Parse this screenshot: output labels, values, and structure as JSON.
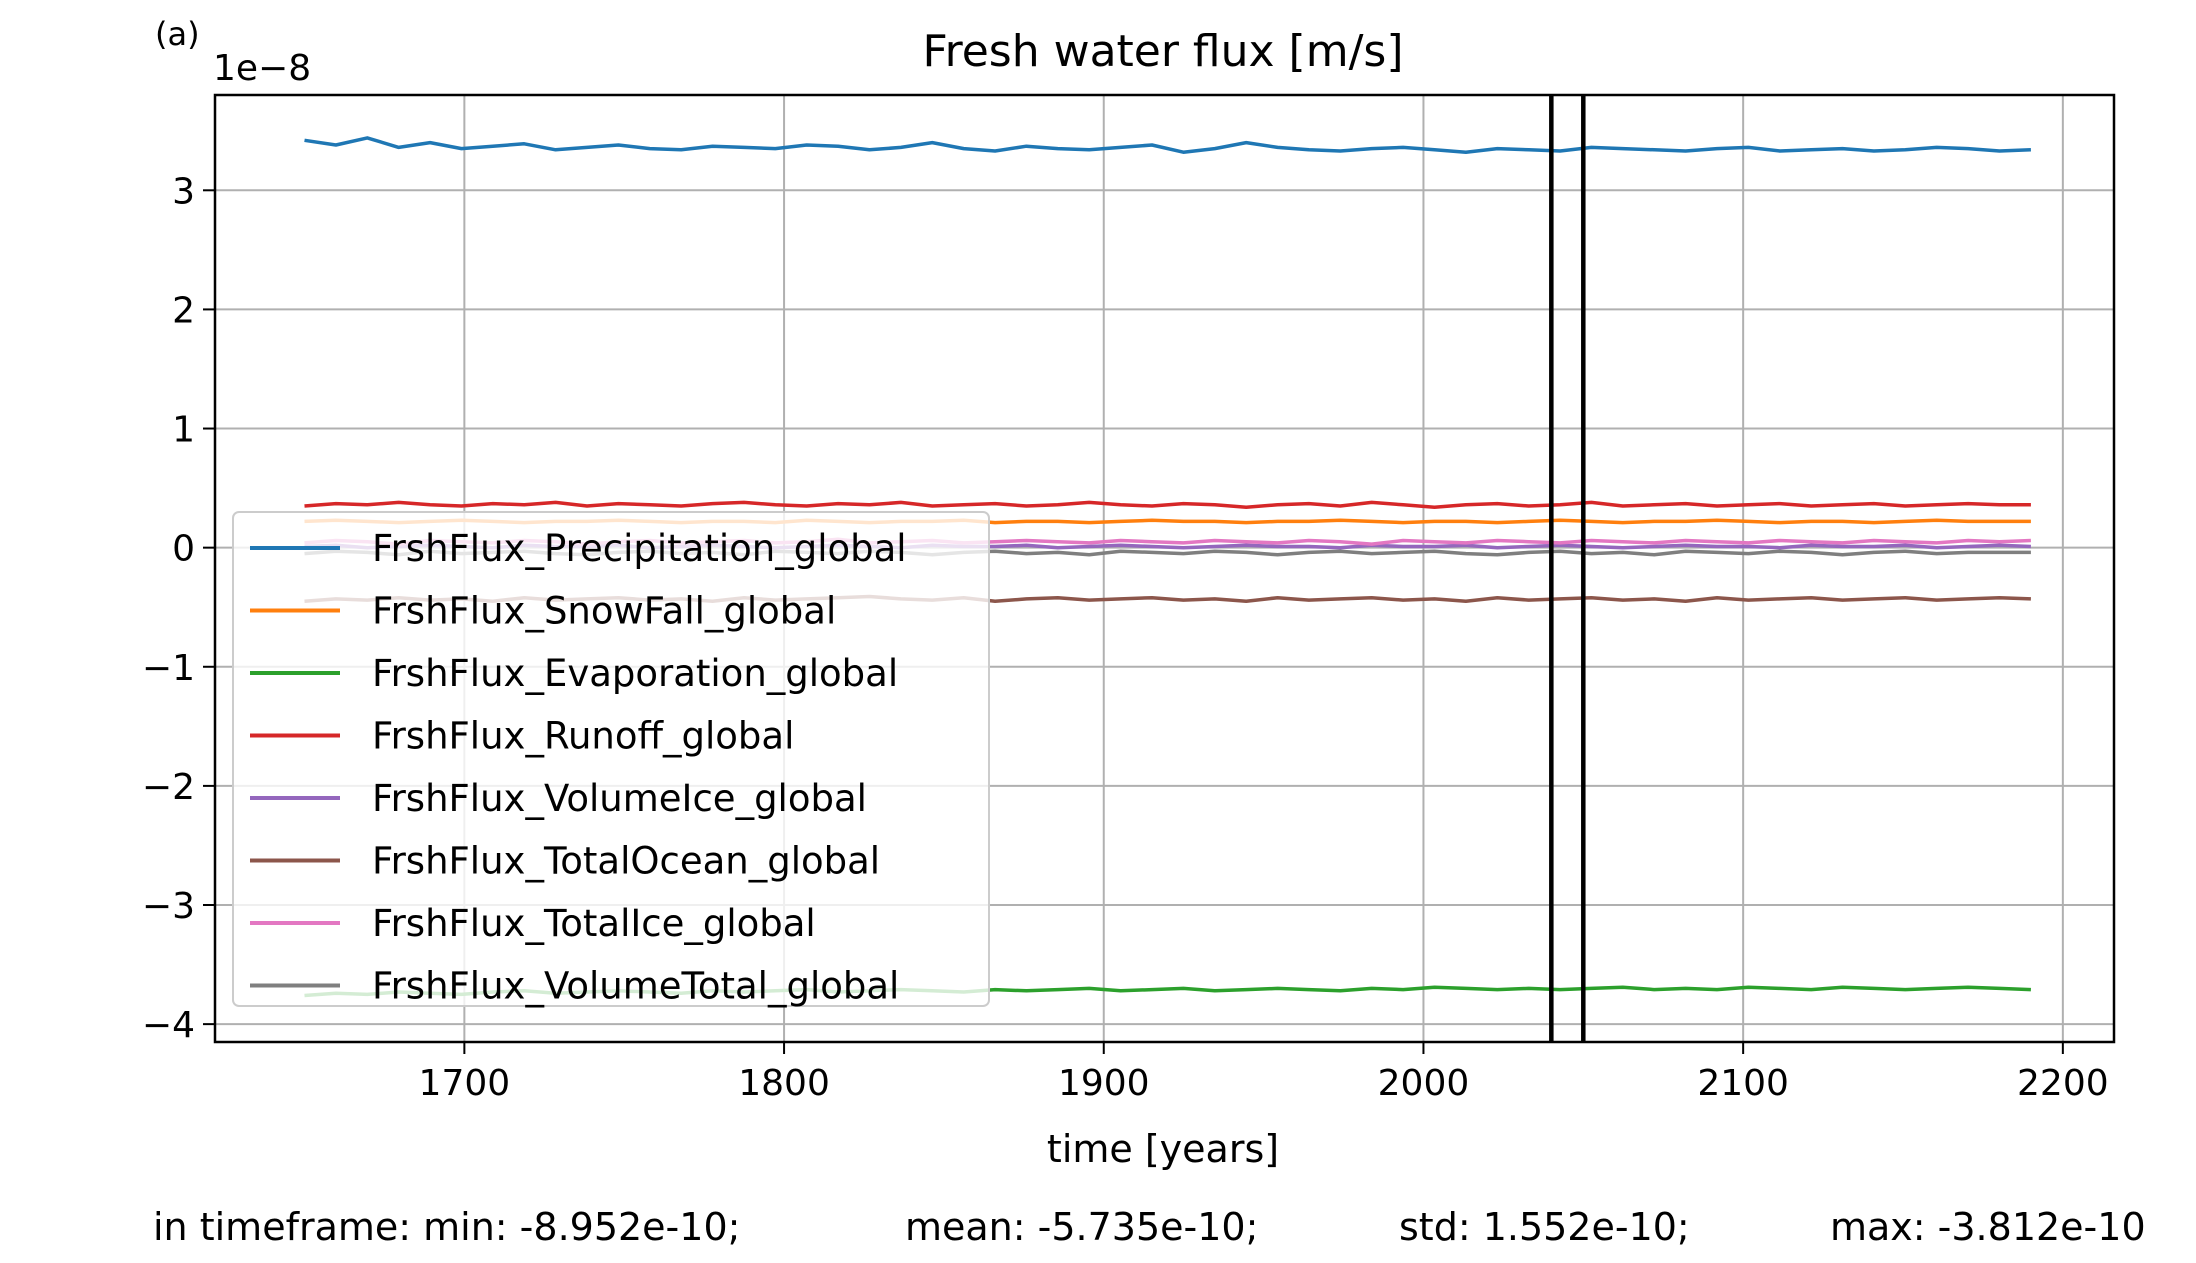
{
  "panel_label": "(a)",
  "footer": {
    "min": "in timeframe: min: -8.952e-10;",
    "mean": "mean: -5.735e-10;",
    "std": "std: 1.552e-10;",
    "max": "max: -3.812e-10"
  },
  "chart_data": {
    "type": "line",
    "title": "Fresh water flux [m/s]",
    "xlabel": "time [years]",
    "ylabel": "",
    "y_offset_label": "1e−8",
    "xlim": [
      1622,
      2216
    ],
    "ylim": [
      -4.15,
      3.8
    ],
    "x_ticks": [
      1700,
      1800,
      1900,
      2000,
      2100,
      2200
    ],
    "y_ticks": [
      3,
      2,
      1,
      0,
      -1,
      -2,
      -3,
      -4
    ],
    "y_tick_labels": [
      "3",
      "2",
      "1",
      "0",
      "−1",
      "−2",
      "−3",
      "−4"
    ],
    "grid": true,
    "legend_position": "lower-left",
    "x_start": 1650,
    "x_end": 2190,
    "vertical_lines": [
      2040,
      2050
    ],
    "series": [
      {
        "name": "FrshFlux_Precipitation_global",
        "color": "#1f77b4",
        "values": [
          3.42,
          3.38,
          3.44,
          3.36,
          3.4,
          3.35,
          3.37,
          3.39,
          3.34,
          3.36,
          3.38,
          3.35,
          3.34,
          3.37,
          3.36,
          3.35,
          3.38,
          3.37,
          3.34,
          3.36,
          3.4,
          3.35,
          3.33,
          3.37,
          3.35,
          3.34,
          3.36,
          3.38,
          3.32,
          3.35,
          3.4,
          3.36,
          3.34,
          3.33,
          3.35,
          3.36,
          3.34,
          3.32,
          3.35,
          3.34,
          3.33,
          3.36,
          3.35,
          3.34,
          3.33,
          3.35,
          3.36,
          3.33,
          3.34,
          3.35,
          3.33,
          3.34,
          3.36,
          3.35,
          3.33,
          3.34
        ]
      },
      {
        "name": "FrshFlux_SnowFall_global",
        "color": "#ff7f0e",
        "values": [
          0.22,
          0.23,
          0.22,
          0.21,
          0.22,
          0.23,
          0.22,
          0.21,
          0.22,
          0.22,
          0.23,
          0.22,
          0.21,
          0.22,
          0.22,
          0.21,
          0.23,
          0.22,
          0.21,
          0.22,
          0.22,
          0.23,
          0.21,
          0.22,
          0.22,
          0.21,
          0.22,
          0.23,
          0.22,
          0.22,
          0.21,
          0.22,
          0.22,
          0.23,
          0.22,
          0.21,
          0.22,
          0.22,
          0.21,
          0.22,
          0.23,
          0.22,
          0.21,
          0.22,
          0.22,
          0.23,
          0.22,
          0.21,
          0.22,
          0.22,
          0.21,
          0.22,
          0.23,
          0.22,
          0.22,
          0.22
        ]
      },
      {
        "name": "FrshFlux_Evaporation_global",
        "color": "#2ca02c",
        "values": [
          -3.76,
          -3.74,
          -3.75,
          -3.73,
          -3.74,
          -3.75,
          -3.73,
          -3.72,
          -3.74,
          -3.73,
          -3.72,
          -3.73,
          -3.74,
          -3.72,
          -3.73,
          -3.72,
          -3.71,
          -3.73,
          -3.72,
          -3.71,
          -3.72,
          -3.73,
          -3.71,
          -3.72,
          -3.71,
          -3.7,
          -3.72,
          -3.71,
          -3.7,
          -3.72,
          -3.71,
          -3.7,
          -3.71,
          -3.72,
          -3.7,
          -3.71,
          -3.69,
          -3.7,
          -3.71,
          -3.7,
          -3.71,
          -3.7,
          -3.69,
          -3.71,
          -3.7,
          -3.71,
          -3.69,
          -3.7,
          -3.71,
          -3.69,
          -3.7,
          -3.71,
          -3.7,
          -3.69,
          -3.7,
          -3.71
        ]
      },
      {
        "name": "FrshFlux_Runoff_global",
        "color": "#d62728",
        "values": [
          0.35,
          0.37,
          0.36,
          0.38,
          0.36,
          0.35,
          0.37,
          0.36,
          0.38,
          0.35,
          0.37,
          0.36,
          0.35,
          0.37,
          0.38,
          0.36,
          0.35,
          0.37,
          0.36,
          0.38,
          0.35,
          0.36,
          0.37,
          0.35,
          0.36,
          0.38,
          0.36,
          0.35,
          0.37,
          0.36,
          0.34,
          0.36,
          0.37,
          0.35,
          0.38,
          0.36,
          0.34,
          0.36,
          0.37,
          0.35,
          0.36,
          0.38,
          0.35,
          0.36,
          0.37,
          0.35,
          0.36,
          0.37,
          0.35,
          0.36,
          0.37,
          0.35,
          0.36,
          0.37,
          0.36,
          0.36
        ]
      },
      {
        "name": "FrshFlux_VolumeIce_global",
        "color": "#9467bd",
        "values": [
          0.01,
          0.02,
          0.0,
          0.01,
          0.02,
          0.01,
          0.0,
          0.02,
          0.01,
          0.01,
          0.02,
          0.0,
          0.01,
          0.02,
          0.01,
          0.0,
          0.01,
          0.02,
          0.01,
          0.0,
          0.02,
          0.01,
          0.01,
          0.02,
          0.0,
          0.01,
          0.02,
          0.01,
          0.0,
          0.01,
          0.02,
          0.01,
          0.01,
          0.0,
          0.02,
          0.01,
          0.01,
          0.02,
          0.0,
          0.01,
          0.02,
          0.01,
          0.0,
          0.01,
          0.02,
          0.01,
          0.01,
          0.0,
          0.02,
          0.01,
          0.01,
          0.02,
          0.0,
          0.01,
          0.02,
          0.01
        ]
      },
      {
        "name": "FrshFlux_TotalOcean_global",
        "color": "#8c564b",
        "values": [
          -0.45,
          -0.43,
          -0.44,
          -0.42,
          -0.44,
          -0.43,
          -0.45,
          -0.42,
          -0.44,
          -0.43,
          -0.42,
          -0.44,
          -0.43,
          -0.45,
          -0.42,
          -0.44,
          -0.43,
          -0.42,
          -0.41,
          -0.43,
          -0.44,
          -0.42,
          -0.45,
          -0.43,
          -0.42,
          -0.44,
          -0.43,
          -0.42,
          -0.44,
          -0.43,
          -0.45,
          -0.42,
          -0.44,
          -0.43,
          -0.42,
          -0.44,
          -0.43,
          -0.45,
          -0.42,
          -0.44,
          -0.43,
          -0.42,
          -0.44,
          -0.43,
          -0.45,
          -0.42,
          -0.44,
          -0.43,
          -0.42,
          -0.44,
          -0.43,
          -0.42,
          -0.44,
          -0.43,
          -0.42,
          -0.43
        ]
      },
      {
        "name": "FrshFlux_TotalIce_global",
        "color": "#e377c2",
        "values": [
          0.04,
          0.06,
          0.05,
          0.03,
          0.06,
          0.05,
          0.04,
          0.06,
          0.05,
          0.03,
          0.05,
          0.06,
          0.04,
          0.05,
          0.06,
          0.04,
          0.05,
          0.07,
          0.04,
          0.05,
          0.06,
          0.04,
          0.05,
          0.06,
          0.05,
          0.04,
          0.06,
          0.05,
          0.04,
          0.06,
          0.05,
          0.04,
          0.06,
          0.05,
          0.03,
          0.06,
          0.05,
          0.04,
          0.06,
          0.05,
          0.04,
          0.06,
          0.05,
          0.04,
          0.06,
          0.05,
          0.04,
          0.06,
          0.05,
          0.04,
          0.06,
          0.05,
          0.04,
          0.06,
          0.05,
          0.06
        ]
      },
      {
        "name": "FrshFlux_VolumeTotal_global",
        "color": "#7f7f7f",
        "values": [
          -0.05,
          -0.03,
          -0.04,
          -0.06,
          -0.03,
          -0.05,
          -0.04,
          -0.03,
          -0.05,
          -0.06,
          -0.04,
          -0.03,
          -0.05,
          -0.04,
          -0.06,
          -0.03,
          -0.04,
          -0.05,
          -0.03,
          -0.04,
          -0.06,
          -0.04,
          -0.03,
          -0.05,
          -0.04,
          -0.06,
          -0.03,
          -0.04,
          -0.05,
          -0.03,
          -0.04,
          -0.06,
          -0.04,
          -0.03,
          -0.05,
          -0.04,
          -0.03,
          -0.05,
          -0.06,
          -0.04,
          -0.03,
          -0.05,
          -0.04,
          -0.06,
          -0.03,
          -0.04,
          -0.05,
          -0.03,
          -0.04,
          -0.06,
          -0.04,
          -0.03,
          -0.05,
          -0.04,
          -0.04,
          -0.04
        ]
      }
    ]
  }
}
